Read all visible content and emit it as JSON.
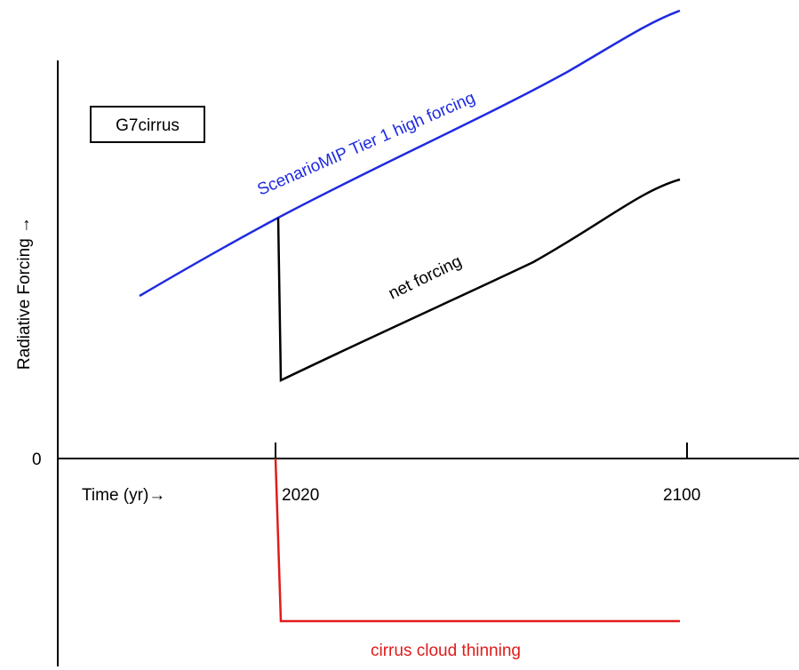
{
  "box_label": "G7cirrus",
  "axis": {
    "y_label": "Radiative Forcing →",
    "zero_label": "0",
    "x_label": "Time (yr)→",
    "tick_2020": "2020",
    "tick_2100": "2100"
  },
  "curves": {
    "scenario_label": "ScenarioMIP Tier 1 high forcing",
    "net_label": "net forcing",
    "cirrus_label": "cirrus cloud thinning"
  },
  "colors": {
    "scenario": "#1f2be0",
    "net": "#000000",
    "cirrus": "#e01b1b",
    "axes": "#000000"
  }
}
